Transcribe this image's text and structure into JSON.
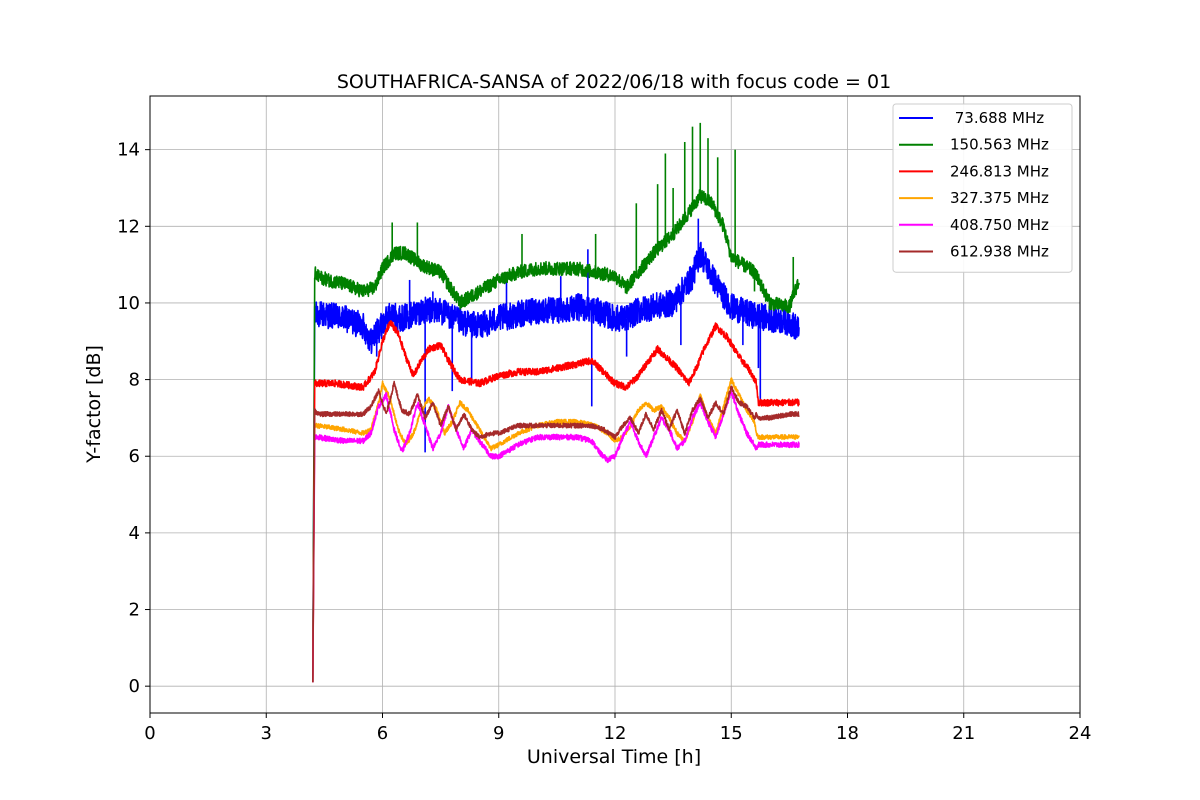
{
  "chart_data": {
    "type": "line",
    "title": "SOUTHAFRICA-SANSA of 2022/06/18 with focus code = 01",
    "xlabel": "Universal Time [h]",
    "ylabel": "Y-factor [dB]",
    "xlim": [
      0,
      24
    ],
    "ylim": [
      -0.7,
      15.4
    ],
    "xticks": [
      0,
      3,
      6,
      9,
      12,
      15,
      18,
      21,
      24
    ],
    "yticks": [
      0,
      2,
      4,
      6,
      8,
      10,
      12,
      14
    ],
    "grid": true,
    "legend_position": "top-right",
    "series": [
      {
        "name": " 73.688 MHz",
        "color": "#0000ff",
        "noise": 0.35,
        "x": [
          4.2,
          4.25,
          4.3,
          4.5,
          5.0,
          5.5,
          5.7,
          5.9,
          6.2,
          6.5,
          7.0,
          7.5,
          8.0,
          8.5,
          9.0,
          9.5,
          10.0,
          10.5,
          11.0,
          11.5,
          12.0,
          12.3,
          12.6,
          13.0,
          13.5,
          14.0,
          14.2,
          14.5,
          14.8,
          15.0,
          15.5,
          16.0,
          16.5,
          16.75
        ],
        "y": [
          0.1,
          9.6,
          9.7,
          9.7,
          9.6,
          9.4,
          9.0,
          9.3,
          9.7,
          9.6,
          9.8,
          9.8,
          9.5,
          9.4,
          9.6,
          9.7,
          9.8,
          9.8,
          9.9,
          9.8,
          9.6,
          9.6,
          9.8,
          9.9,
          10.0,
          10.7,
          11.3,
          10.7,
          10.2,
          9.9,
          9.7,
          9.6,
          9.5,
          9.3
        ],
        "spikes": [
          [
            5.85,
            8.6
          ],
          [
            6.7,
            10.6
          ],
          [
            7.1,
            6.1
          ],
          [
            7.3,
            10.3
          ],
          [
            7.8,
            7.7
          ],
          [
            8.3,
            7.9
          ],
          [
            9.2,
            10.6
          ],
          [
            10.6,
            10.7
          ],
          [
            11.3,
            11.4
          ],
          [
            11.4,
            7.3
          ],
          [
            12.3,
            8.6
          ],
          [
            13.7,
            8.9
          ],
          [
            14.15,
            12.2
          ],
          [
            15.3,
            8.9
          ],
          [
            15.75,
            7.4
          ],
          [
            15.7,
            8.3
          ]
        ]
      },
      {
        "name": "150.563 MHz",
        "color": "#008000",
        "noise": 0.18,
        "x": [
          4.2,
          4.25,
          4.3,
          4.6,
          5.0,
          5.5,
          5.8,
          6.0,
          6.3,
          6.6,
          7.0,
          7.5,
          8.0,
          8.5,
          9.0,
          9.5,
          10.0,
          10.5,
          11.0,
          11.5,
          12.0,
          12.3,
          12.6,
          13.0,
          13.5,
          13.8,
          14.2,
          14.5,
          14.8,
          15.0,
          15.3,
          15.6,
          16.0,
          16.5,
          16.75
        ],
        "y": [
          0.1,
          10.8,
          10.7,
          10.6,
          10.5,
          10.3,
          10.4,
          10.9,
          11.3,
          11.3,
          11.0,
          10.8,
          10.0,
          10.3,
          10.6,
          10.8,
          10.9,
          10.9,
          10.9,
          10.8,
          10.7,
          10.4,
          10.8,
          11.3,
          11.8,
          12.2,
          12.8,
          12.6,
          12.0,
          11.2,
          11.0,
          10.8,
          10.0,
          9.9,
          10.6
        ],
        "spikes": [
          [
            6.25,
            12.1
          ],
          [
            6.9,
            12.1
          ],
          [
            9.6,
            11.8
          ],
          [
            11.5,
            11.8
          ],
          [
            12.55,
            12.6
          ],
          [
            13.1,
            13.1
          ],
          [
            13.3,
            13.9
          ],
          [
            13.5,
            13.0
          ],
          [
            13.8,
            14.2
          ],
          [
            14.0,
            14.6
          ],
          [
            14.2,
            14.7
          ],
          [
            14.4,
            14.3
          ],
          [
            14.65,
            13.8
          ],
          [
            15.1,
            14.0
          ],
          [
            15.6,
            10.3
          ],
          [
            16.6,
            11.2
          ]
        ]
      },
      {
        "name": "246.813 MHz",
        "color": "#ff0000",
        "noise": 0.09,
        "x": [
          4.2,
          4.25,
          4.3,
          4.8,
          5.5,
          5.8,
          6.0,
          6.2,
          6.4,
          6.6,
          6.8,
          7.0,
          7.2,
          7.5,
          7.7,
          8.0,
          8.5,
          9.0,
          9.5,
          10.0,
          10.5,
          11.0,
          11.4,
          11.7,
          12.0,
          12.3,
          12.6,
          12.8,
          13.1,
          13.3,
          13.6,
          13.9,
          14.1,
          14.3,
          14.6,
          14.9,
          15.2,
          15.5,
          15.65,
          15.7,
          16.0,
          16.5,
          16.75
        ],
        "y": [
          0.1,
          7.9,
          7.9,
          7.9,
          7.8,
          8.2,
          9.0,
          9.5,
          9.2,
          8.6,
          8.1,
          8.5,
          8.8,
          8.9,
          8.5,
          8.0,
          7.9,
          8.1,
          8.2,
          8.2,
          8.3,
          8.4,
          8.5,
          8.2,
          7.9,
          7.8,
          8.1,
          8.4,
          8.8,
          8.6,
          8.3,
          7.9,
          8.3,
          8.8,
          9.4,
          9.1,
          8.6,
          8.2,
          7.9,
          7.4,
          7.4,
          7.4,
          7.4
        ],
        "spikes": []
      },
      {
        "name": "327.375 MHz",
        "color": "#ffa500",
        "noise": 0.06,
        "x": [
          4.2,
          4.25,
          4.3,
          5.0,
          5.5,
          5.7,
          5.9,
          6.0,
          6.2,
          6.4,
          6.6,
          6.8,
          7.0,
          7.2,
          7.4,
          7.6,
          7.8,
          8.0,
          8.2,
          8.5,
          8.8,
          9.0,
          9.5,
          10.0,
          10.5,
          11.0,
          11.5,
          11.8,
          12.0,
          12.2,
          12.4,
          12.6,
          12.8,
          13.0,
          13.2,
          13.4,
          13.6,
          13.8,
          14.0,
          14.2,
          14.4,
          14.6,
          14.8,
          15.0,
          15.2,
          15.4,
          15.6,
          15.65,
          15.7,
          16.0,
          16.5,
          16.75
        ],
        "y": [
          0.1,
          6.8,
          6.8,
          6.7,
          6.6,
          6.7,
          7.4,
          7.9,
          7.5,
          6.7,
          6.3,
          6.6,
          7.2,
          7.5,
          7.2,
          6.6,
          6.9,
          7.4,
          7.2,
          6.7,
          6.2,
          6.3,
          6.6,
          6.8,
          6.9,
          6.9,
          6.8,
          6.6,
          6.4,
          6.5,
          6.8,
          7.2,
          7.4,
          7.2,
          7.3,
          7.0,
          6.6,
          6.4,
          6.9,
          7.6,
          7.0,
          6.6,
          7.3,
          8.0,
          7.6,
          7.2,
          6.9,
          6.6,
          6.5,
          6.5,
          6.5,
          6.5
        ],
        "spikes": []
      },
      {
        "name": "408.750 MHz",
        "color": "#ff00ff",
        "noise": 0.07,
        "x": [
          4.2,
          4.25,
          4.3,
          5.0,
          5.5,
          5.7,
          5.9,
          6.1,
          6.3,
          6.5,
          6.7,
          6.9,
          7.1,
          7.3,
          7.5,
          7.7,
          7.9,
          8.1,
          8.3,
          8.5,
          8.8,
          9.0,
          9.5,
          10.0,
          10.5,
          11.0,
          11.4,
          11.6,
          11.8,
          12.0,
          12.2,
          12.4,
          12.6,
          12.8,
          13.0,
          13.2,
          13.4,
          13.6,
          13.8,
          14.0,
          14.2,
          14.4,
          14.6,
          14.8,
          15.0,
          15.2,
          15.4,
          15.6,
          15.65,
          15.7,
          16.0,
          16.5,
          16.75
        ],
        "y": [
          0.1,
          6.5,
          6.5,
          6.4,
          6.4,
          6.6,
          7.3,
          7.6,
          6.7,
          6.1,
          6.6,
          7.4,
          6.8,
          6.2,
          6.6,
          7.3,
          6.7,
          6.2,
          6.7,
          6.4,
          6.0,
          6.0,
          6.3,
          6.5,
          6.5,
          6.5,
          6.4,
          6.1,
          5.9,
          6.0,
          6.5,
          6.9,
          6.4,
          6.0,
          6.5,
          7.0,
          6.7,
          6.2,
          6.4,
          7.0,
          7.4,
          6.9,
          6.5,
          7.1,
          7.7,
          7.1,
          6.6,
          6.3,
          6.2,
          6.3,
          6.3,
          6.3,
          6.3
        ],
        "spikes": []
      },
      {
        "name": "612.938 MHz",
        "color": "#a52a2a",
        "noise": 0.06,
        "x": [
          4.2,
          4.25,
          4.3,
          5.0,
          5.5,
          5.7,
          5.9,
          6.1,
          6.3,
          6.5,
          6.7,
          6.9,
          7.1,
          7.3,
          7.5,
          7.7,
          7.9,
          8.1,
          8.3,
          8.5,
          8.8,
          9.0,
          9.5,
          10.0,
          10.5,
          11.0,
          11.4,
          11.7,
          12.0,
          12.2,
          12.4,
          12.6,
          12.8,
          13.0,
          13.2,
          13.4,
          13.6,
          13.8,
          14.0,
          14.2,
          14.4,
          14.6,
          14.8,
          15.0,
          15.2,
          15.4,
          15.6,
          15.65,
          15.7,
          16.0,
          16.5,
          16.75
        ],
        "y": [
          0.1,
          7.2,
          7.1,
          7.1,
          7.1,
          7.3,
          7.7,
          7.1,
          7.9,
          7.2,
          7.1,
          7.6,
          7.0,
          7.4,
          6.8,
          7.3,
          6.7,
          7.1,
          6.7,
          6.5,
          6.6,
          6.6,
          6.8,
          6.8,
          6.8,
          6.8,
          6.8,
          6.7,
          6.5,
          6.8,
          7.0,
          6.6,
          7.1,
          6.7,
          7.2,
          6.7,
          7.2,
          6.6,
          7.2,
          7.5,
          7.0,
          7.4,
          7.1,
          7.8,
          7.4,
          7.3,
          7.0,
          7.1,
          7.0,
          7.0,
          7.1,
          7.1
        ],
        "spikes": []
      }
    ]
  }
}
